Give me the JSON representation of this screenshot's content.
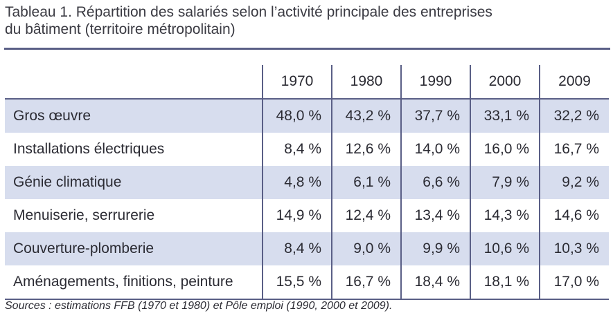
{
  "title": {
    "line1": "Tableau 1. Répartition des salariés selon l’activité principale des entreprises",
    "line2": "du bâtiment (territoire métropolitain)"
  },
  "table": {
    "years": [
      "1970",
      "1980",
      "1990",
      "2000",
      "2009"
    ],
    "rows": [
      {
        "label": "Gros œuvre",
        "values": [
          "48,0 %",
          "43,2 %",
          "37,7 %",
          "33,1 %",
          "32,2 %"
        ]
      },
      {
        "label": "Installations électriques",
        "values": [
          "8,4 %",
          "12,6 %",
          "14,0 %",
          "16,0 %",
          "16,7 %"
        ]
      },
      {
        "label": "Génie climatique",
        "values": [
          "4,8 %",
          "6,1 %",
          "6,6 %",
          "7,9 %",
          "9,2 %"
        ]
      },
      {
        "label": "Menuiserie, serrurerie",
        "values": [
          "14,9 %",
          "12,4 %",
          "13,4 %",
          "14,3 %",
          "14,6 %"
        ]
      },
      {
        "label": "Couverture-plomberie",
        "values": [
          "8,4 %",
          "9,0 %",
          "9,9 %",
          "10,6 %",
          "10,3 %"
        ]
      },
      {
        "label": "Aménagements, finitions, peinture",
        "values": [
          "15,5 %",
          "16,7 %",
          "18,4 %",
          "18,1 %",
          "17,0 %"
        ]
      }
    ]
  },
  "source": "Sources : estimations FFB (1970 et 1980) et Pôle emploi (1990, 2000 et 2009).",
  "colors": {
    "rule": "#5a5f86",
    "row_shade": "#d7ddee",
    "text": "#2b2b33"
  }
}
